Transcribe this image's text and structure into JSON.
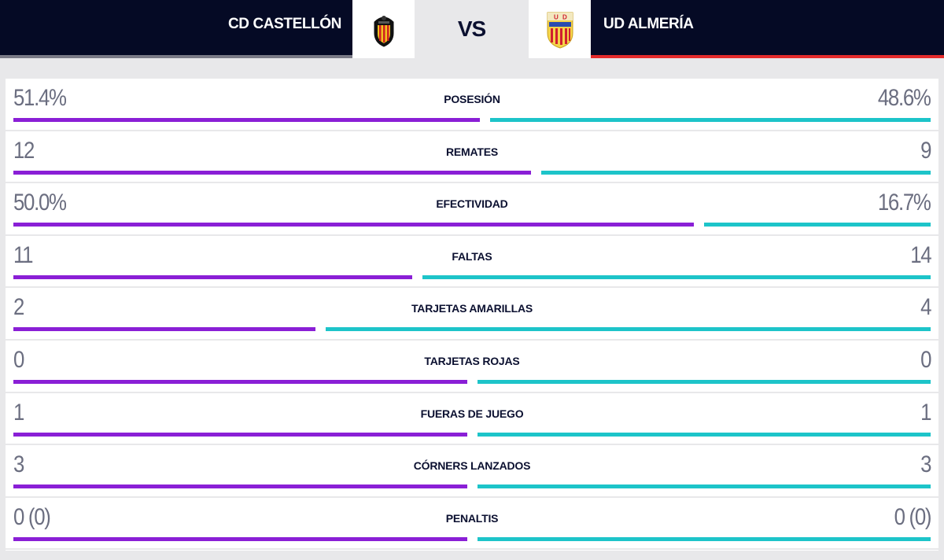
{
  "header": {
    "home_team": "CD CASTELLÓN",
    "away_team": "UD ALMERÍA",
    "vs": "VS"
  },
  "colors": {
    "home_bar": "#8a1fd6",
    "away_bar": "#1dc4c9",
    "header_bg": "#050a25",
    "away_accent": "#e52b2b"
  },
  "stats": [
    {
      "label": "POSESIÓN",
      "home": "51.4%",
      "away": "48.6%",
      "home_share": 0.514
    },
    {
      "label": "REMATES",
      "home": "12",
      "away": "9",
      "home_share": 0.571
    },
    {
      "label": "EFECTIVIDAD",
      "home": "50.0%",
      "away": "16.7%",
      "home_share": 0.75
    },
    {
      "label": "FALTAS",
      "home": "11",
      "away": "14",
      "home_share": 0.44
    },
    {
      "label": "TARJETAS AMARILLAS",
      "home": "2",
      "away": "4",
      "home_share": 0.333
    },
    {
      "label": "TARJETAS ROJAS",
      "home": "0",
      "away": "0",
      "home_share": 0.5
    },
    {
      "label": "FUERAS DE JUEGO",
      "home": "1",
      "away": "1",
      "home_share": 0.5
    },
    {
      "label": "CÓRNERS LANZADOS",
      "home": "3",
      "away": "3",
      "home_share": 0.5
    },
    {
      "label": "PENALTIS",
      "home": "0 (0)",
      "away": "0 (0)",
      "home_share": 0.5
    }
  ]
}
